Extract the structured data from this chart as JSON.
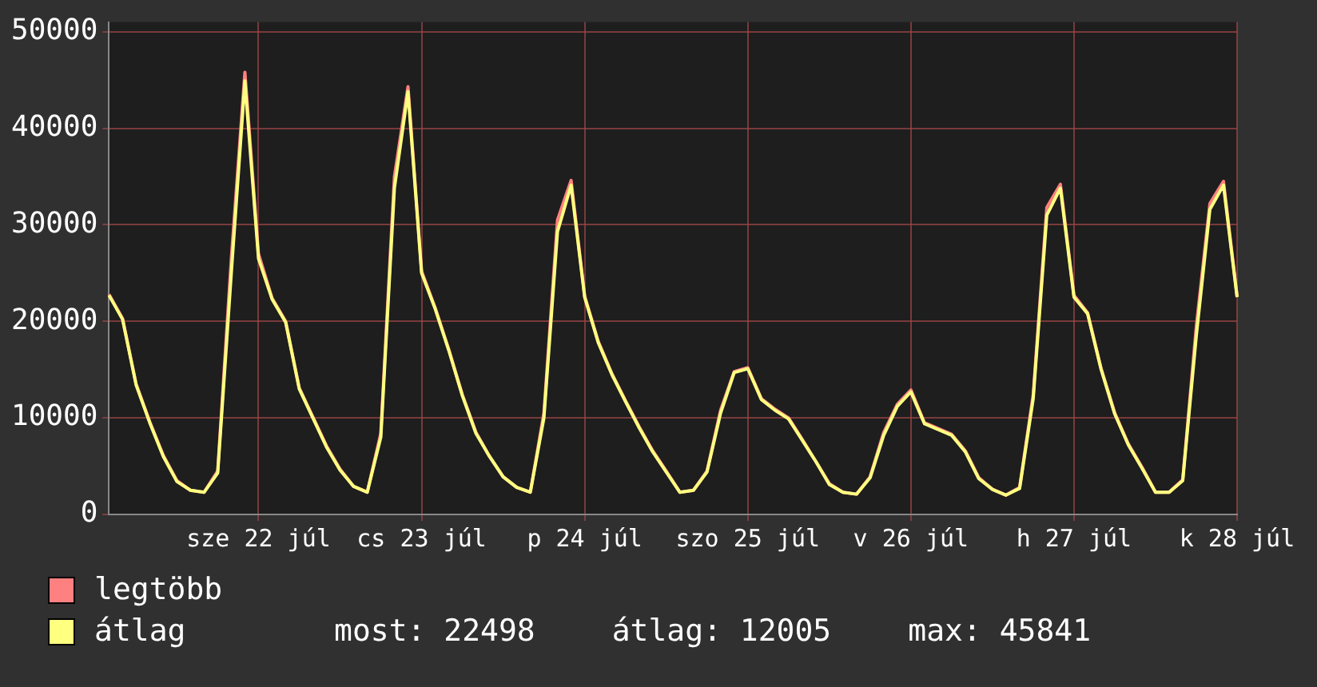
{
  "chart_data": {
    "type": "line",
    "categories": [
      null,
      null,
      null,
      null,
      null,
      null,
      null,
      null,
      null,
      null,
      null,
      "sze 22 júl",
      null,
      null,
      null,
      null,
      null,
      null,
      null,
      null,
      null,
      null,
      null,
      "cs 23 júl",
      null,
      null,
      null,
      null,
      null,
      null,
      null,
      null,
      null,
      null,
      null,
      "p 24 júl",
      null,
      null,
      null,
      null,
      null,
      null,
      null,
      null,
      null,
      null,
      null,
      "szo 25 júl",
      null,
      null,
      null,
      null,
      null,
      null,
      null,
      null,
      null,
      null,
      null,
      "v 26 júl",
      null,
      null,
      null,
      null,
      null,
      null,
      null,
      null,
      null,
      null,
      null,
      "h 27 júl",
      null,
      null,
      null,
      null,
      null,
      null,
      null,
      null,
      null,
      null,
      null,
      "k 28 júl"
    ],
    "series": [
      {
        "name": "legtöbb",
        "color": "#ff8080",
        "values": [
          22800,
          20300,
          13500,
          9600,
          6100,
          3500,
          2500,
          2300,
          4500,
          26500,
          45800,
          27000,
          22400,
          20000,
          13100,
          10100,
          7100,
          4700,
          2900,
          2300,
          8400,
          35000,
          44300,
          25200,
          21400,
          17100,
          12400,
          8500,
          6000,
          3900,
          2800,
          2300,
          10500,
          30500,
          34600,
          22600,
          17900,
          14600,
          11800,
          9100,
          6600,
          4500,
          2300,
          2500,
          4500,
          10800,
          14800,
          15200,
          12000,
          10900,
          10000,
          7800,
          5500,
          3200,
          2300,
          2100,
          3900,
          8500,
          11400,
          12900,
          9500,
          8900,
          8300,
          6600,
          3800,
          2600,
          2000,
          2800,
          12400,
          31800,
          34200,
          22700,
          20900,
          15100,
          10500,
          7300,
          4900,
          2300,
          2300,
          3600,
          19500,
          32200,
          34500,
          22600
        ]
      },
      {
        "name": "átlag",
        "color": "#ffff80",
        "values": [
          22700,
          20200,
          13400,
          9500,
          6000,
          3400,
          2500,
          2300,
          4300,
          25000,
          44900,
          26500,
          22300,
          19900,
          13000,
          10000,
          7000,
          4600,
          2900,
          2300,
          8000,
          33800,
          43800,
          25000,
          21300,
          17000,
          12300,
          8400,
          6000,
          3900,
          2800,
          2300,
          10000,
          29300,
          34100,
          22500,
          17800,
          14500,
          11700,
          9000,
          6500,
          4400,
          2300,
          2500,
          4400,
          10500,
          14700,
          15100,
          11900,
          10800,
          9900,
          7700,
          5500,
          3100,
          2300,
          2100,
          3800,
          8200,
          11200,
          12700,
          9400,
          8800,
          8200,
          6500,
          3700,
          2600,
          2000,
          2700,
          12000,
          31000,
          33800,
          22500,
          20800,
          15000,
          10400,
          7200,
          4800,
          2300,
          2300,
          3500,
          18500,
          31600,
          34100,
          22500
        ]
      }
    ],
    "ylim": [
      0,
      51000
    ],
    "yticks": [
      0,
      10000,
      20000,
      30000,
      40000,
      50000
    ],
    "grid": true,
    "legend": "bottom left",
    "annotations": [
      "most: 22498",
      "átlag: 12005",
      "max: 45841"
    ]
  }
}
